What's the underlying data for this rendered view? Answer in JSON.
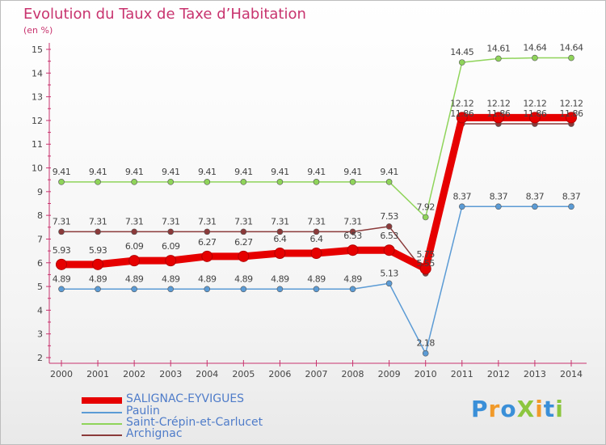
{
  "chart_data": {
    "type": "line",
    "title": "Evolution du Taux de Taxe d’Habitation",
    "subtitle": "(en %)",
    "x": [
      "2000",
      "2001",
      "2002",
      "2003",
      "2004",
      "2005",
      "2006",
      "2007",
      "2008",
      "2009",
      "2010",
      "2011",
      "2012",
      "2013",
      "2014"
    ],
    "ylim": [
      2,
      15
    ],
    "yticks": [
      2,
      3,
      4,
      5,
      6,
      7,
      8,
      9,
      10,
      11,
      12,
      13,
      14,
      15
    ],
    "grid": false,
    "legend_position": "bottom-left",
    "series": [
      {
        "name": "SALIGNAC-EYVIGUES",
        "color": "#e60000",
        "values": [
          5.93,
          5.93,
          6.09,
          6.09,
          6.27,
          6.27,
          6.4,
          6.4,
          6.53,
          6.53,
          5.75,
          12.12,
          12.12,
          12.12,
          12.12
        ],
        "labels": [
          "5.93",
          "5.93",
          "6.09",
          "6.09",
          "6.27",
          "6.27",
          "6.4",
          "6.4",
          "6.53",
          "6.53",
          "5.75",
          "12.12",
          "12.12",
          "12.12",
          "12.12"
        ]
      },
      {
        "name": "Paulin",
        "color": "#5b9bd5",
        "values": [
          4.89,
          4.89,
          4.89,
          4.89,
          4.89,
          4.89,
          4.89,
          4.89,
          4.89,
          5.13,
          2.18,
          8.37,
          8.37,
          8.37,
          8.37
        ],
        "labels": [
          "4.89",
          "4.89",
          "4.89",
          "4.89",
          "4.89",
          "4.89",
          "4.89",
          "4.89",
          "4.89",
          "5.13",
          "2.18",
          "8.37",
          "8.37",
          "8.37",
          "8.37"
        ]
      },
      {
        "name": "Saint-Crépin-et-Carlucet",
        "color": "#8fd45a",
        "values": [
          9.41,
          9.41,
          9.41,
          9.41,
          9.41,
          9.41,
          9.41,
          9.41,
          9.41,
          9.41,
          7.92,
          14.45,
          14.61,
          14.64,
          14.64
        ],
        "labels": [
          "9.41",
          "9.41",
          "9.41",
          "9.41",
          "9.41",
          "9.41",
          "9.41",
          "9.41",
          "9.41",
          "9.41",
          "7.92",
          "14.45",
          "14.61",
          "14.64",
          "14.64"
        ]
      },
      {
        "name": "Archignac",
        "color": "#8b3a3a",
        "values": [
          7.31,
          7.31,
          7.31,
          7.31,
          7.31,
          7.31,
          7.31,
          7.31,
          7.31,
          7.53,
          5.55,
          11.86,
          11.86,
          11.86,
          11.86
        ],
        "labels": [
          "7.31",
          "7.31",
          "7.31",
          "7.31",
          "7.31",
          "7.31",
          "7.31",
          "7.31",
          "7.31",
          "7.53",
          "5.55",
          "11.86",
          "11.86",
          "11.86",
          "11.86"
        ]
      }
    ]
  },
  "logo_text": "ProXiti"
}
